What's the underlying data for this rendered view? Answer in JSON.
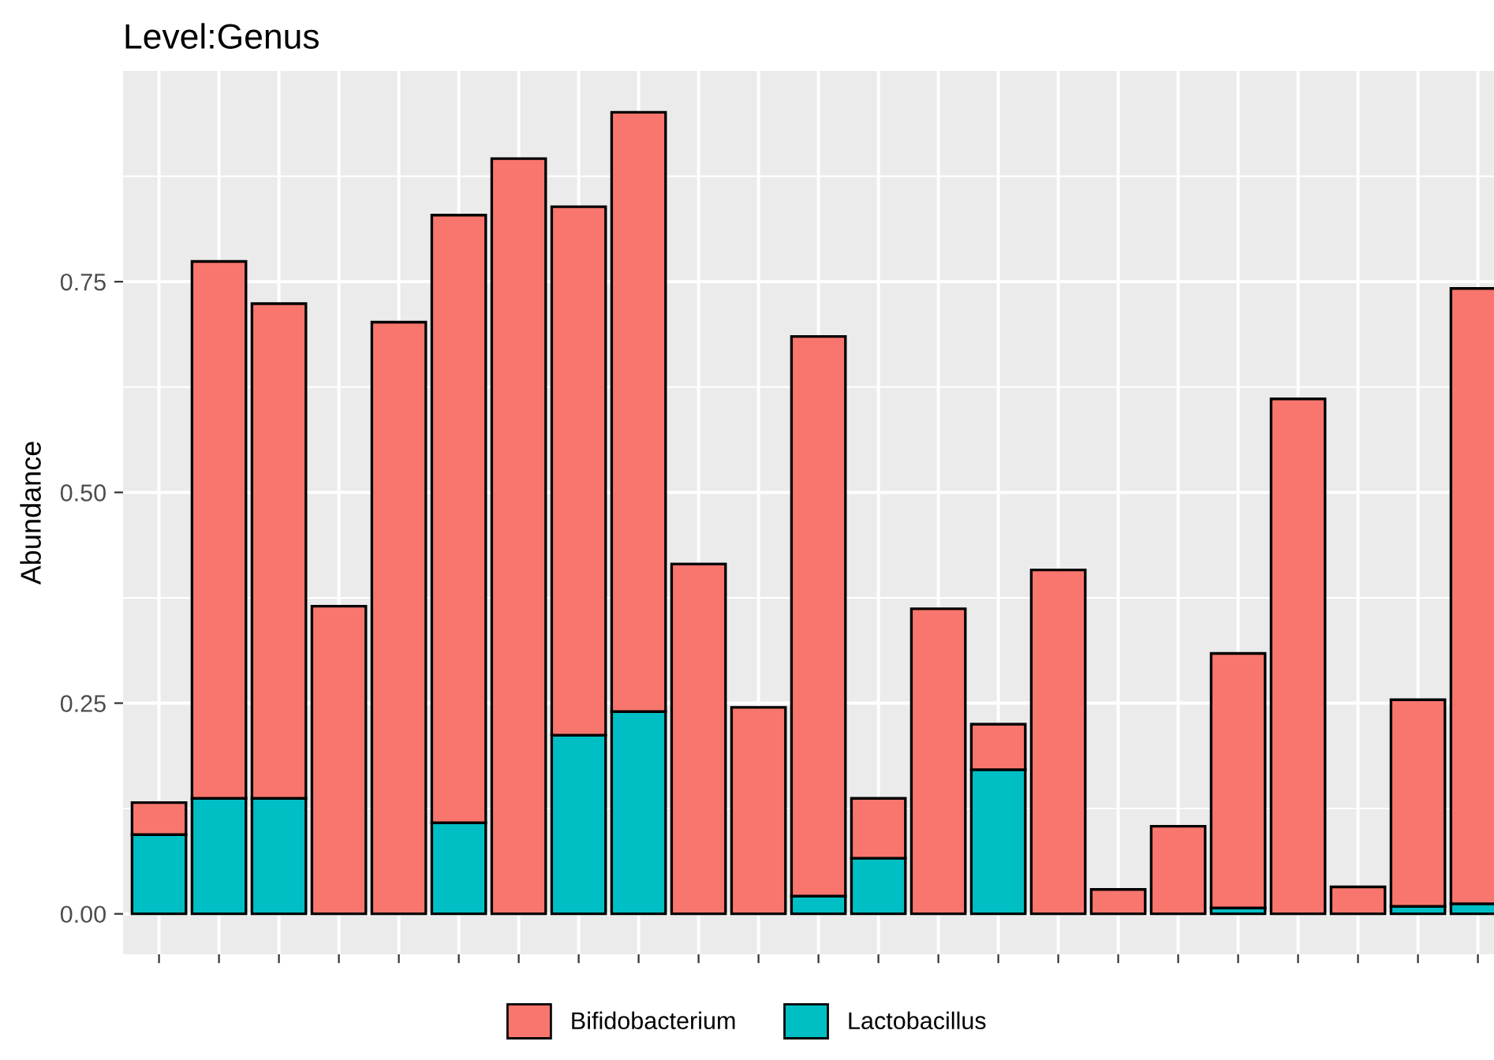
{
  "chart_data": {
    "type": "bar",
    "title": "Level:Genus",
    "ylabel": "Abundance",
    "stacked": true,
    "categories": [
      null,
      null,
      null,
      null,
      null,
      null,
      null,
      null,
      null,
      null,
      null,
      null,
      null,
      null,
      null,
      null,
      null,
      null,
      null,
      null,
      null,
      null,
      null
    ],
    "series": [
      {
        "name": "Lactobacillus",
        "color": "#00bfc4",
        "values": [
          0.094,
          0.137,
          0.137,
          0,
          0,
          0.108,
          0,
          0.212,
          0.24,
          0,
          0,
          0.021,
          0.066,
          0,
          0.171,
          0,
          0,
          0,
          0.007,
          0,
          0,
          0.009,
          0.012
        ]
      },
      {
        "name": "Bifidobacterium",
        "color": "#f8766d",
        "values": [
          0.038,
          0.637,
          0.587,
          0.365,
          0.702,
          0.721,
          0.896,
          0.627,
          0.711,
          0.415,
          0.245,
          0.664,
          0.071,
          0.362,
          0.054,
          0.408,
          0.029,
          0.104,
          0.302,
          0.611,
          0.032,
          0.245,
          0.73
        ]
      }
    ],
    "ylim": [
      -0.048,
      1.0
    ],
    "yticks": [
      {
        "value": 0,
        "label": "0.00"
      },
      {
        "value": 0.25,
        "label": "0.25"
      },
      {
        "value": 0.5,
        "label": "0.50"
      },
      {
        "value": 0.75,
        "label": "0.75"
      }
    ],
    "grid": true,
    "legend": "bottom",
    "tick_labels": "y"
  }
}
